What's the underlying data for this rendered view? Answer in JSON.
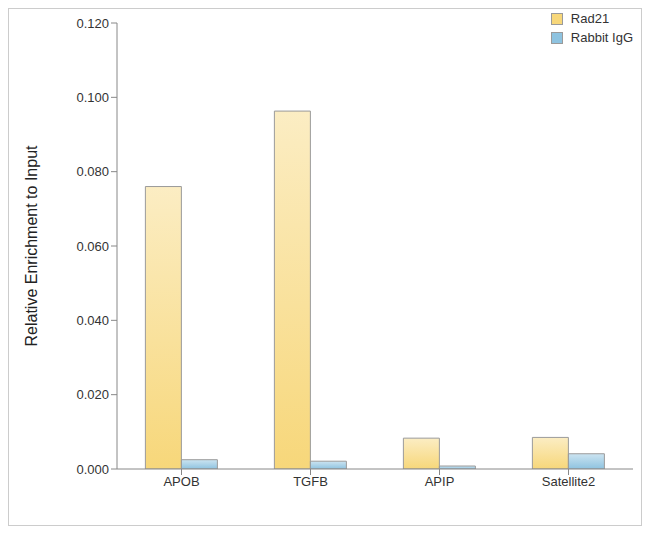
{
  "chart_data": {
    "type": "bar",
    "categories": [
      "APOB",
      "TGFB",
      "APIP",
      "Satellite2"
    ],
    "series": [
      {
        "name": "Rad21",
        "color": "#f7d77a",
        "values": [
          0.076,
          0.0963,
          0.0083,
          0.0085
        ]
      },
      {
        "name": "Rabbit IgG",
        "color": "#8ec3e0",
        "values": [
          0.0025,
          0.0021,
          0.0008,
          0.0041
        ]
      }
    ],
    "y_label": "Relative Enrichment to Input",
    "ylim": [
      0,
      0.12
    ],
    "yticks": [
      {
        "value": 0,
        "label": "0.000"
      },
      {
        "value": 0.02,
        "label": "0.020"
      },
      {
        "value": 0.04,
        "label": "0.040"
      },
      {
        "value": 0.06,
        "label": "0.060"
      },
      {
        "value": 0.08,
        "label": "0.080"
      },
      {
        "value": 0.1,
        "label": "0.100"
      },
      {
        "value": 0.12,
        "label": "0.120"
      }
    ],
    "grid": false,
    "legend": "upper right"
  }
}
